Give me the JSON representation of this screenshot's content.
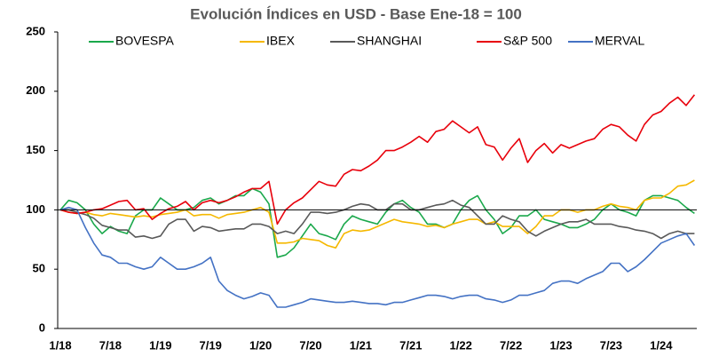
{
  "chart_data": {
    "type": "line",
    "title": "Evolución Índices en USD - Base Ene-18 = 100",
    "categories": [
      "1/18",
      null,
      null,
      null,
      null,
      null,
      "7/18",
      null,
      null,
      null,
      null,
      null,
      "1/19",
      null,
      null,
      null,
      null,
      null,
      "7/19",
      null,
      null,
      null,
      null,
      null,
      "1/20",
      null,
      null,
      null,
      null,
      null,
      "7/20",
      null,
      null,
      null,
      null,
      null,
      "1/21",
      null,
      null,
      null,
      null,
      null,
      "7/21",
      null,
      null,
      null,
      null,
      null,
      "1/22",
      null,
      null,
      null,
      null,
      null,
      "7/22",
      null,
      null,
      null,
      null,
      null,
      "1/23",
      null,
      null,
      null,
      null,
      null,
      "7/23",
      null,
      null,
      null,
      null,
      null,
      "1/24",
      null,
      null,
      null,
      null
    ],
    "series": [
      {
        "name": "BOVESPA",
        "color": "#1aa84b",
        "values": [
          100,
          108,
          106,
          100,
          88,
          80,
          86,
          82,
          80,
          95,
          100,
          100,
          110,
          105,
          100,
          100,
          102,
          108,
          110,
          105,
          108,
          112,
          112,
          118,
          115,
          105,
          60,
          62,
          68,
          78,
          88,
          80,
          78,
          75,
          88,
          95,
          92,
          90,
          88,
          98,
          105,
          108,
          102,
          98,
          88,
          88,
          85,
          88,
          100,
          108,
          112,
          100,
          92,
          80,
          85,
          95,
          95,
          100,
          92,
          90,
          88,
          85,
          85,
          88,
          92,
          100,
          105,
          100,
          98,
          95,
          108,
          112,
          112,
          110,
          108,
          102,
          97
        ]
      },
      {
        "name": "IBEX",
        "color": "#f5b800",
        "values": [
          100,
          98,
          97,
          98,
          96,
          95,
          97,
          96,
          95,
          94,
          95,
          94,
          96,
          97,
          98,
          100,
          95,
          96,
          96,
          93,
          96,
          97,
          98,
          100,
          102,
          98,
          72,
          72,
          73,
          76,
          75,
          74,
          70,
          68,
          80,
          83,
          82,
          83,
          86,
          89,
          92,
          90,
          89,
          88,
          86,
          87,
          85,
          88,
          90,
          92,
          92,
          88,
          90,
          86,
          86,
          86,
          80,
          86,
          95,
          95,
          100,
          100,
          98,
          100,
          100,
          103,
          105,
          103,
          102,
          100,
          108,
          110,
          110,
          114,
          120,
          121,
          125
        ]
      },
      {
        "name": "SHANGHAI",
        "color": "#595959",
        "values": [
          100,
          100,
          98,
          96,
          93,
          87,
          85,
          83,
          83,
          77,
          78,
          76,
          78,
          88,
          92,
          92,
          82,
          86,
          85,
          82,
          83,
          84,
          84,
          88,
          88,
          86,
          80,
          82,
          80,
          88,
          98,
          98,
          97,
          98,
          100,
          103,
          105,
          104,
          100,
          100,
          105,
          105,
          100,
          100,
          102,
          104,
          105,
          108,
          104,
          102,
          95,
          88,
          88,
          95,
          92,
          90,
          82,
          78,
          82,
          85,
          88,
          90,
          90,
          92,
          88,
          88,
          88,
          86,
          85,
          83,
          82,
          80,
          76,
          80,
          82,
          80,
          80
        ]
      },
      {
        "name": "S&P 500",
        "color": "#e8000b",
        "values": [
          100,
          98,
          97,
          98,
          100,
          101,
          104,
          107,
          108,
          100,
          101,
          92,
          97,
          101,
          103,
          107,
          100,
          106,
          108,
          106,
          108,
          111,
          115,
          118,
          118,
          124,
          88,
          100,
          106,
          110,
          117,
          124,
          121,
          120,
          130,
          134,
          133,
          137,
          142,
          150,
          150,
          153,
          157,
          162,
          157,
          166,
          168,
          175,
          170,
          165,
          170,
          155,
          153,
          142,
          152,
          160,
          140,
          150,
          156,
          148,
          155,
          152,
          155,
          158,
          160,
          168,
          172,
          170,
          163,
          158,
          172,
          180,
          183,
          190,
          195,
          188,
          197
        ]
      },
      {
        "name": "MERVAL",
        "color": "#4472c4",
        "values": [
          100,
          102,
          100,
          85,
          72,
          62,
          60,
          55,
          55,
          52,
          50,
          52,
          60,
          55,
          50,
          50,
          52,
          55,
          60,
          40,
          32,
          28,
          25,
          27,
          30,
          28,
          18,
          18,
          20,
          22,
          25,
          24,
          23,
          22,
          22,
          23,
          22,
          21,
          21,
          20,
          22,
          22,
          24,
          26,
          28,
          28,
          27,
          25,
          27,
          28,
          28,
          25,
          24,
          22,
          24,
          28,
          28,
          30,
          32,
          38,
          40,
          40,
          38,
          42,
          45,
          48,
          55,
          55,
          48,
          52,
          58,
          65,
          72,
          75,
          78,
          80,
          70
        ]
      }
    ],
    "ylim": [
      0,
      250
    ],
    "yticks": [
      0,
      50,
      100,
      150,
      200,
      250
    ],
    "hline": 100,
    "legend": "top"
  }
}
